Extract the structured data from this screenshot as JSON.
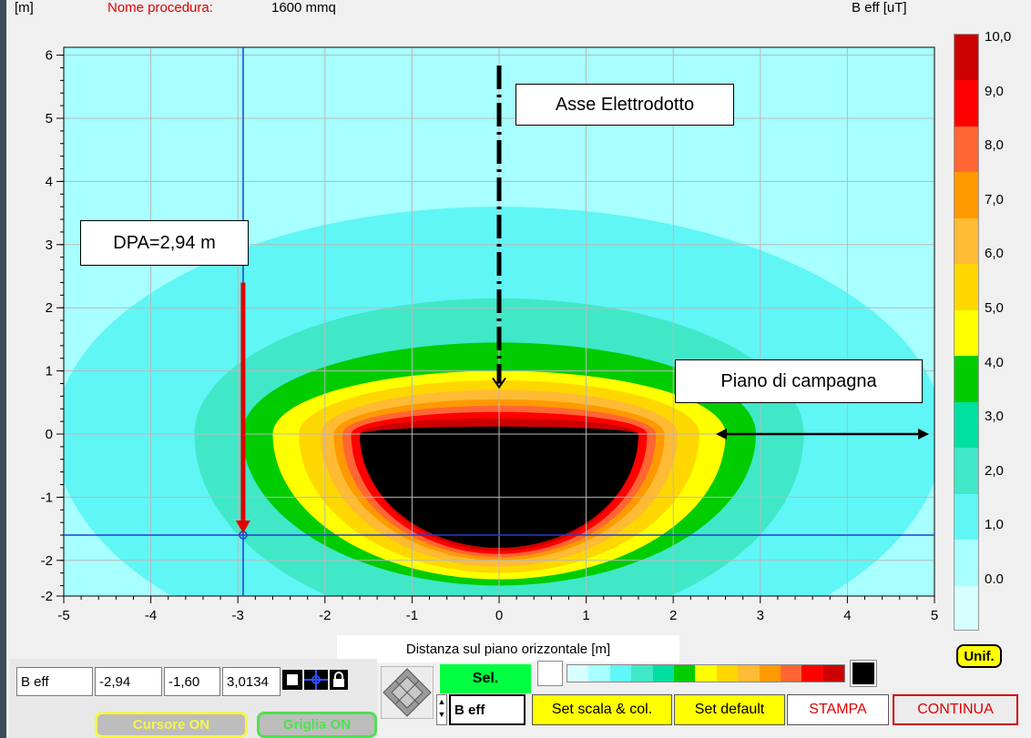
{
  "header": {
    "y_unit": "[m]",
    "procedure_label": "Nome procedura:",
    "procedure_name": "1600 mmq",
    "quantity_label": "B eff [uT]"
  },
  "chart_data": {
    "type": "heatmap",
    "title": "",
    "xlabel": "Distanza sul piano orizzontale [m]",
    "ylabel": "[m]",
    "xlim": [
      -5,
      5
    ],
    "ylim": [
      -2.5,
      6.2
    ],
    "x_ticks": [
      "-5",
      "-4",
      "-3",
      "-2",
      "-1",
      "0",
      "1",
      "2",
      "3",
      "4",
      "5"
    ],
    "y_ticks": [
      "-2",
      "-2",
      "-1",
      "0",
      "1",
      "2",
      "3",
      "4",
      "5",
      "6"
    ],
    "grid": true,
    "colorbar": {
      "label": "B eff [uT]",
      "ticks": [
        "10,0",
        "9,0",
        "8,0",
        "7,0",
        "6,0",
        "5,0",
        "4,0",
        "3,0",
        "2,0",
        "1,0",
        "0.0"
      ],
      "levels": [
        {
          "from": 0.0,
          "to": 1.0,
          "color": "#d6ffff"
        },
        {
          "from": 1.0,
          "to": 1.5,
          "color": "#a8ffff"
        },
        {
          "from": 1.5,
          "to": 2.0,
          "color": "#60f6f6"
        },
        {
          "from": 2.0,
          "to": 2.5,
          "color": "#40e8c8"
        },
        {
          "from": 2.5,
          "to": 3.0,
          "color": "#00e0a0"
        },
        {
          "from": 3.0,
          "to": 4.0,
          "color": "#00cc00"
        },
        {
          "from": 4.0,
          "to": 4.5,
          "color": "#ffff00"
        },
        {
          "from": 4.5,
          "to": 5.0,
          "color": "#ffd700"
        },
        {
          "from": 5.0,
          "to": 6.0,
          "color": "#ffbb33"
        },
        {
          "from": 6.0,
          "to": 7.0,
          "color": "#ff9900"
        },
        {
          "from": 7.0,
          "to": 8.0,
          "color": "#ff6633"
        },
        {
          "from": 8.0,
          "to": 9.0,
          "color": "#ff0000"
        },
        {
          "from": 9.0,
          "to": 10.0,
          "color": "#cc0000"
        },
        {
          "from": 10.0,
          "to": null,
          "color": "#000000"
        }
      ]
    },
    "contours": [
      {
        "b_uT": 1.5,
        "rx": 5.1,
        "ry_up": 3.6,
        "ry_down": 3.8,
        "color": "#60f6f6"
      },
      {
        "b_uT": 2.0,
        "rx": 3.5,
        "ry_up": 2.15,
        "ry_down": 3.1,
        "color": "#40e8c8"
      },
      {
        "b_uT": 3.0,
        "rx": 2.95,
        "ry_up": 1.45,
        "ry_down": 2.4,
        "color": "#00cc00"
      },
      {
        "b_uT": 4.0,
        "rx": 2.6,
        "ry_up": 1.0,
        "ry_down": 2.3,
        "color": "#ffff00"
      },
      {
        "b_uT": 4.5,
        "rx": 2.3,
        "ry_up": 0.85,
        "ry_down": 2.2,
        "color": "#ffd700"
      },
      {
        "b_uT": 5.0,
        "rx": 2.05,
        "ry_up": 0.7,
        "ry_down": 2.1,
        "color": "#ffbb33"
      },
      {
        "b_uT": 6.0,
        "rx": 1.9,
        "ry_up": 0.55,
        "ry_down": 2.0,
        "color": "#ff9900"
      },
      {
        "b_uT": 7.0,
        "rx": 1.8,
        "ry_up": 0.45,
        "ry_down": 1.95,
        "color": "#ff6633"
      },
      {
        "b_uT": 8.0,
        "rx": 1.7,
        "ry_up": 0.35,
        "ry_down": 1.9,
        "color": "#ff0000"
      },
      {
        "b_uT": 9.0,
        "rx": 1.6,
        "ry_up": 0.25,
        "ry_down": 1.85,
        "color": "#cc0000"
      },
      {
        "b_uT": 10.0,
        "rx": 1.6,
        "ry_up": 0.12,
        "ry_down": 1.8,
        "color": "#000000"
      }
    ],
    "cursor": {
      "x": -2.94,
      "y": -1.6
    },
    "annotations": {
      "asse": "Asse Elettrodotto",
      "dpa": "DPA=2,94 m",
      "piano": "Piano di campagna"
    }
  },
  "footer": {
    "readout": {
      "quantity": "B eff",
      "x": "-2,94",
      "y": "-1,60",
      "value": "3,0134"
    },
    "cursor_button": "Cursore ON",
    "grid_button": "Griglia ON",
    "sel_label": "Sel.",
    "quantity_select": "B eff",
    "set_scale_button": "Set scala & col.",
    "set_default_button": "Set default",
    "stampa_button": "STAMPA",
    "continua_button": "CONTINUA",
    "unif_button": "Unif."
  },
  "colors": {
    "accent_red": "#e00000",
    "button_yellow": "#ffff00",
    "sel_green": "#00ff40"
  }
}
